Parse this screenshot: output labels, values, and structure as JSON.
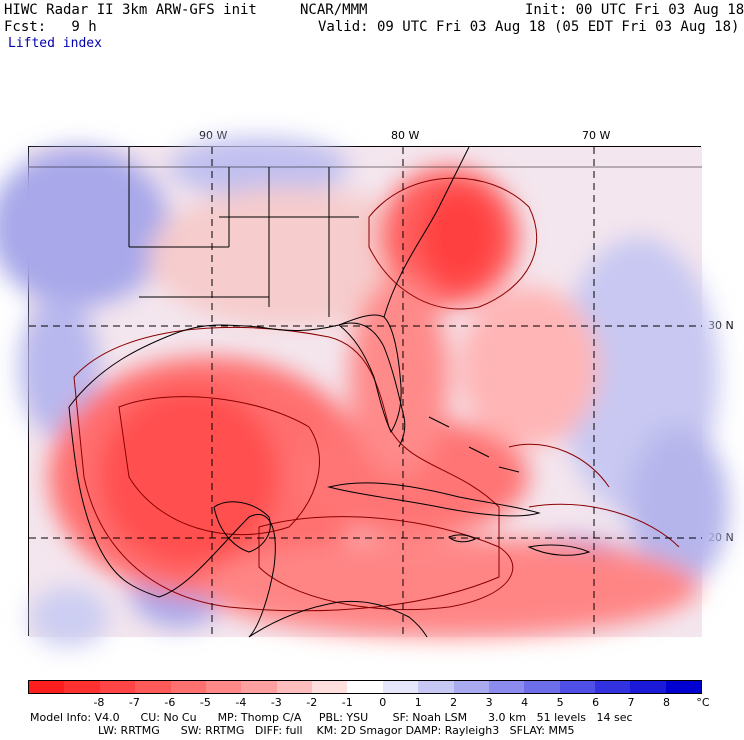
{
  "header": {
    "model": "HIWC Radar II 3km ARW-GFS init",
    "org": "NCAR/MMM",
    "init": "Init: 00 UTC Fri 03 Aug 18",
    "fcst": "Fcst:   9 h",
    "valid": "Valid: 09 UTC Fri 03 Aug 18 (05 EDT Fri 03 Aug 18)",
    "field": "Lifted index"
  },
  "map": {
    "longitude_labels": [
      "90 W",
      "80 W",
      "70 W"
    ],
    "latitude_labels": [
      "30 N",
      "20 N"
    ]
  },
  "colorbar": {
    "tick_labels": [
      "-8",
      "-7",
      "-6",
      "-5",
      "-4",
      "-3",
      "-2",
      "-1",
      "0",
      "1",
      "2",
      "3",
      "4",
      "5",
      "6",
      "7",
      "8"
    ],
    "unit": "°C",
    "colors": [
      "#ff1e1e",
      "#ff3030",
      "#ff4545",
      "#ff5a5a",
      "#ff7070",
      "#ff8888",
      "#ffa0a0",
      "#ffbebe",
      "#ffdede",
      "#ffffff",
      "#e6e6fa",
      "#c8c8f5",
      "#aaaaf0",
      "#8c8cee",
      "#6e6eea",
      "#5050e6",
      "#3232e0",
      "#1a1ad8",
      "#0000d0"
    ]
  },
  "model_info": {
    "line1": "Model Info: V4.0      CU: No Cu      MP: Thomp C/A     PBL: YSU       SF: Noah LSM      3.0 km   51 levels   14 sec",
    "line2": "LW: RRTMG      SW: RRTMG   DIFF: full    KM: 2D Smagor DAMP: Rayleigh3   SFLAY: MM5"
  }
}
